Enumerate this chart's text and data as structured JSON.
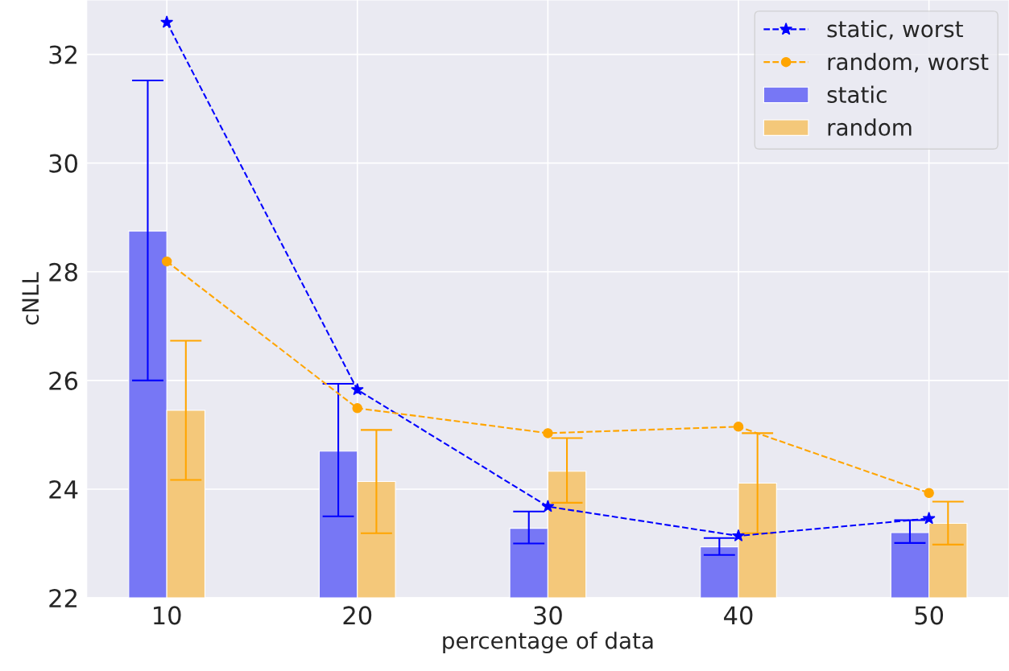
{
  "chart_data": {
    "type": "bar",
    "xlabel": "percentage of data",
    "ylabel": "cNLL",
    "x": [
      10,
      20,
      30,
      40,
      50
    ],
    "series": [
      {
        "name": "static, worst",
        "type": "line",
        "color": "#0000ff",
        "marker": "star",
        "line_style": "dashed",
        "values": [
          32.59,
          25.83,
          23.68,
          23.14,
          23.46
        ]
      },
      {
        "name": "random, worst",
        "type": "line",
        "color": "#ffa500",
        "marker": "circle",
        "line_style": "dashed",
        "values": [
          28.19,
          25.49,
          25.03,
          25.15,
          23.93
        ]
      },
      {
        "name": "static",
        "color": "#7777f5",
        "values": [
          28.75,
          24.7,
          23.28,
          22.94,
          23.2
        ],
        "errors": [
          [
            26.0,
            31.52
          ],
          [
            23.5,
            25.94
          ],
          [
            23.0,
            23.59
          ],
          [
            22.79,
            23.1
          ],
          [
            23.01,
            23.43
          ]
        ]
      },
      {
        "name": "random",
        "color": "#f4c87a",
        "values": [
          25.45,
          24.14,
          24.33,
          24.11,
          23.37
        ],
        "errors": [
          [
            24.17,
            26.73
          ],
          [
            23.19,
            25.09
          ],
          [
            23.75,
            24.94
          ],
          [
            23.19,
            25.03
          ],
          [
            22.98,
            23.77
          ]
        ]
      }
    ],
    "xlim": [
      5.8,
      54.2
    ],
    "xticks": [
      10,
      20,
      30,
      40,
      50
    ],
    "ylim": [
      22,
      33.0
    ],
    "yticks": [
      22,
      24,
      26,
      28,
      30,
      32
    ],
    "grid": true,
    "legend": "top right"
  }
}
